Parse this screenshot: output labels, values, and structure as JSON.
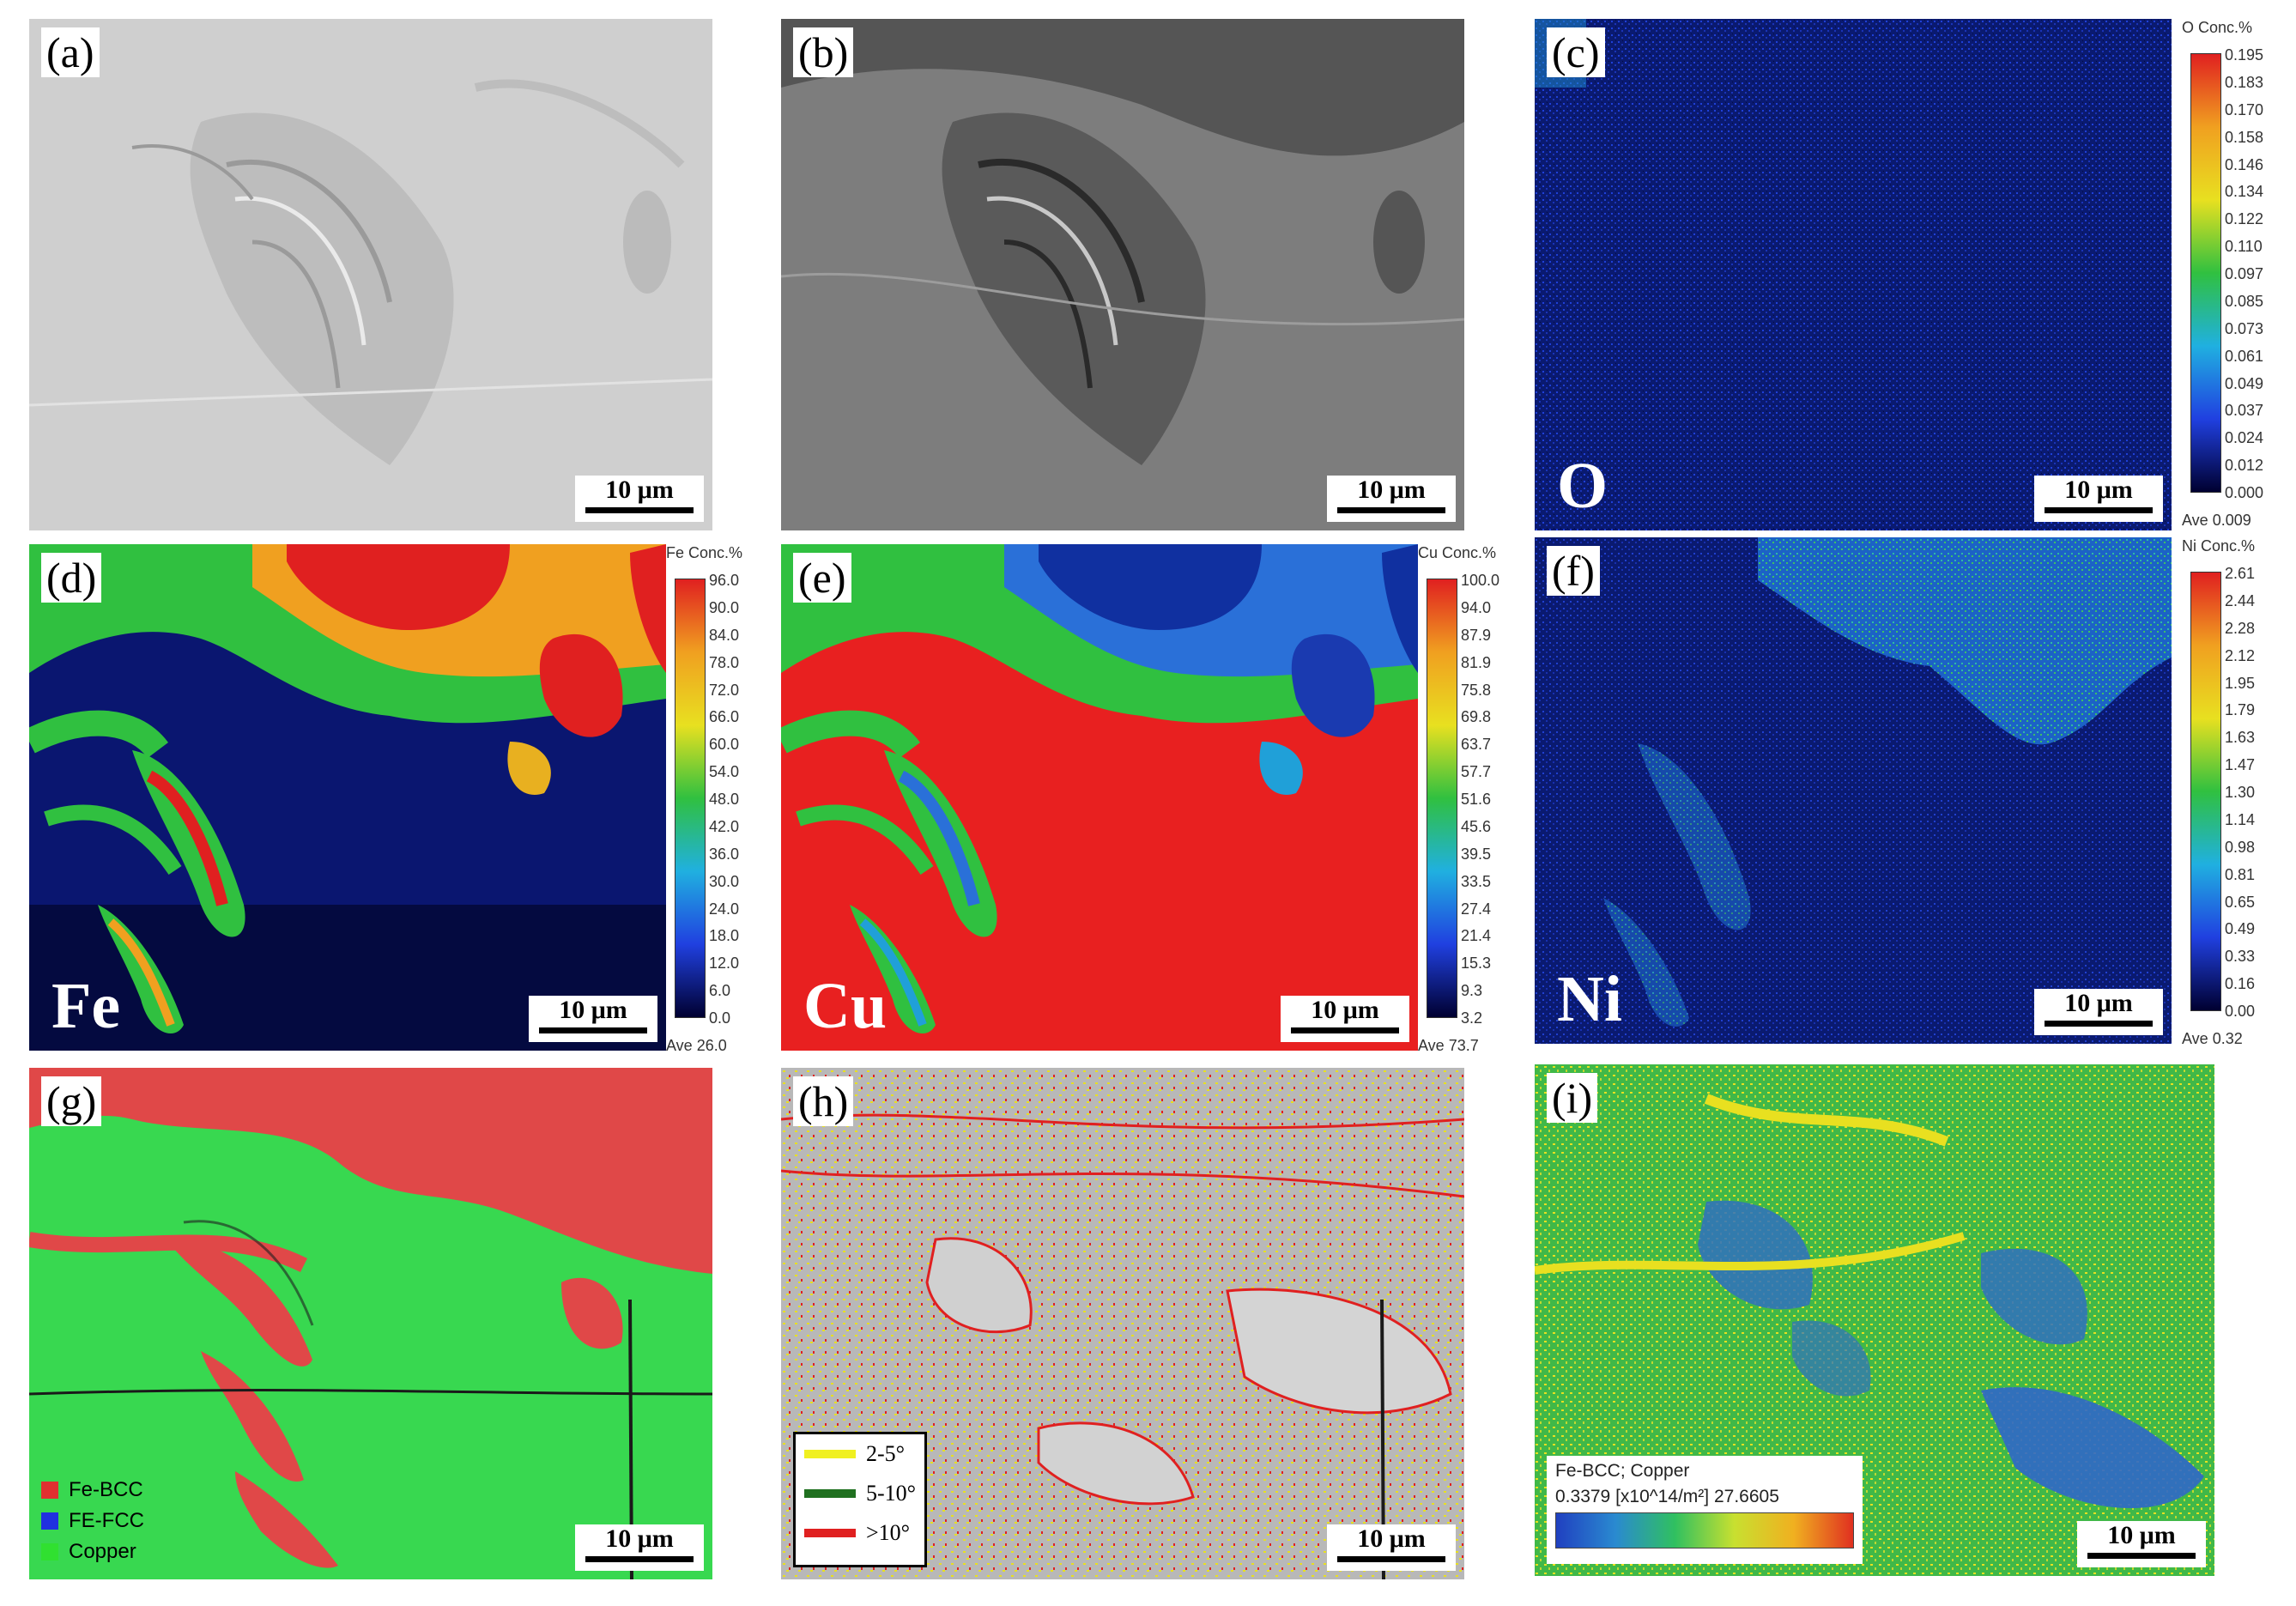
{
  "panels": {
    "a": {
      "label": "(a)",
      "scale": "10 μm"
    },
    "b": {
      "label": "(b)",
      "scale": "10 μm"
    },
    "c": {
      "label": "(c)",
      "scale": "10 μm",
      "element": "O",
      "colorbar": {
        "head": "O  Conc.%",
        "ticks": [
          "0.195",
          "0.183",
          "0.170",
          "0.158",
          "0.146",
          "0.134",
          "0.122",
          "0.110",
          "0.097",
          "0.085",
          "0.073",
          "0.061",
          "0.049",
          "0.037",
          "0.024",
          "0.012",
          "0.000"
        ],
        "ave": "Ave 0.009"
      }
    },
    "d": {
      "label": "(d)",
      "scale": "10 μm",
      "element": "Fe",
      "colorbar": {
        "head": "Fe  Conc.%",
        "ticks": [
          "96.0",
          "90.0",
          "84.0",
          "78.0",
          "72.0",
          "66.0",
          "60.0",
          "54.0",
          "48.0",
          "42.0",
          "36.0",
          "30.0",
          "24.0",
          "18.0",
          "12.0",
          "6.0",
          "0.0"
        ],
        "ave": "Ave 26.0"
      }
    },
    "e": {
      "label": "(e)",
      "scale": "10 μm",
      "element": "Cu",
      "colorbar": {
        "head": "Cu  Conc.%",
        "ticks": [
          "100.0",
          "94.0",
          "87.9",
          "81.9",
          "75.8",
          "69.8",
          "63.7",
          "57.7",
          "51.6",
          "45.6",
          "39.5",
          "33.5",
          "27.4",
          "21.4",
          "15.3",
          "9.3",
          "3.2"
        ],
        "ave": "Ave 73.7"
      }
    },
    "f": {
      "label": "(f)",
      "scale": "10 μm",
      "element": "Ni",
      "colorbar": {
        "head": "Ni  Conc.%",
        "ticks": [
          "2.61",
          "2.44",
          "2.28",
          "2.12",
          "1.95",
          "1.79",
          "1.63",
          "1.47",
          "1.30",
          "1.14",
          "0.98",
          "0.81",
          "0.65",
          "0.49",
          "0.33",
          "0.16",
          "0.00"
        ],
        "ave": "Ave 0.32"
      }
    },
    "g": {
      "label": "(g)",
      "scale": "10 μm",
      "legend": [
        {
          "name": "Fe-BCC",
          "color": "#e03030"
        },
        {
          "name": "FE-FCC",
          "color": "#2030e0"
        },
        {
          "name": "Copper",
          "color": "#30e030"
        }
      ]
    },
    "h": {
      "label": "(h)",
      "scale": "10 μm",
      "legend": [
        {
          "name": "2-5°",
          "color": "#f0f020"
        },
        {
          "name": "5-10°",
          "color": "#207020"
        },
        {
          "name": ">10°",
          "color": "#e02020"
        }
      ]
    },
    "i": {
      "label": "(i)",
      "scale": "10 μm",
      "legend": {
        "title": "Fe-BCC; Copper",
        "range": "0.3379   [x10^14/m²] 27.6605"
      }
    }
  }
}
